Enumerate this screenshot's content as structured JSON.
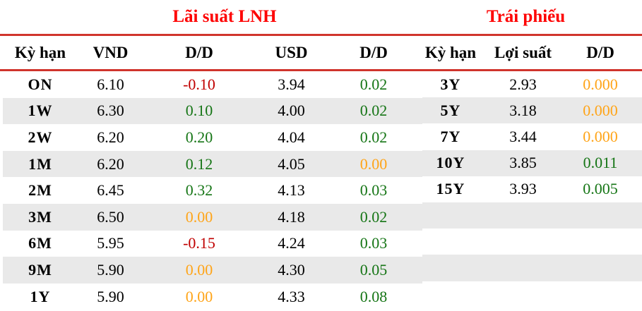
{
  "left": {
    "title": "Lãi suất LNH",
    "headers": [
      "Kỳ hạn",
      "VND",
      "D/D",
      "USD",
      "D/D"
    ],
    "rows": [
      {
        "term": "ON",
        "vnd": "6.10",
        "vnd_dd": "-0.10",
        "vnd_dd_color": "down",
        "usd": "3.94",
        "usd_dd": "0.02",
        "usd_dd_color": "up"
      },
      {
        "term": "1W",
        "vnd": "6.30",
        "vnd_dd": "0.10",
        "vnd_dd_color": "up",
        "usd": "4.00",
        "usd_dd": "0.02",
        "usd_dd_color": "up"
      },
      {
        "term": "2W",
        "vnd": "6.20",
        "vnd_dd": "0.20",
        "vnd_dd_color": "up",
        "usd": "4.04",
        "usd_dd": "0.02",
        "usd_dd_color": "up"
      },
      {
        "term": "1M",
        "vnd": "6.20",
        "vnd_dd": "0.12",
        "vnd_dd_color": "up",
        "usd": "4.05",
        "usd_dd": "0.00",
        "usd_dd_color": "flat"
      },
      {
        "term": "2M",
        "vnd": "6.45",
        "vnd_dd": "0.32",
        "vnd_dd_color": "up",
        "usd": "4.13",
        "usd_dd": "0.03",
        "usd_dd_color": "up"
      },
      {
        "term": "3M",
        "vnd": "6.50",
        "vnd_dd": "0.00",
        "vnd_dd_color": "flat",
        "usd": "4.18",
        "usd_dd": "0.02",
        "usd_dd_color": "up"
      },
      {
        "term": "6M",
        "vnd": "5.95",
        "vnd_dd": "-0.15",
        "vnd_dd_color": "down",
        "usd": "4.24",
        "usd_dd": "0.03",
        "usd_dd_color": "up"
      },
      {
        "term": "9M",
        "vnd": "5.90",
        "vnd_dd": "0.00",
        "vnd_dd_color": "flat",
        "usd": "4.30",
        "usd_dd": "0.05",
        "usd_dd_color": "up"
      },
      {
        "term": "1Y",
        "vnd": "5.90",
        "vnd_dd": "0.00",
        "vnd_dd_color": "flat",
        "usd": "4.33",
        "usd_dd": "0.08",
        "usd_dd_color": "up"
      }
    ]
  },
  "right": {
    "title": "Trái phiếu",
    "headers": [
      "Kỳ hạn",
      "Lợi suất",
      "D/D"
    ],
    "rows": [
      {
        "term": "3Y",
        "yield": "2.93",
        "dd": "0.000",
        "dd_color": "flat"
      },
      {
        "term": "5Y",
        "yield": "3.18",
        "dd": "0.000",
        "dd_color": "flat"
      },
      {
        "term": "7Y",
        "yield": "3.44",
        "dd": "0.000",
        "dd_color": "flat"
      },
      {
        "term": "10Y",
        "yield": "3.85",
        "dd": "0.011",
        "dd_color": "up"
      },
      {
        "term": "15Y",
        "yield": "3.93",
        "dd": "0.005",
        "dd_color": "up"
      }
    ]
  },
  "colors": {
    "title_red": "#FE0000",
    "rule_red": "#D0342C",
    "positive_green": "#157515",
    "negative_red": "#C00000",
    "flat_orange": "#FFA417",
    "stripe_gray": "#E9E9E9",
    "text_black": "#000000"
  }
}
